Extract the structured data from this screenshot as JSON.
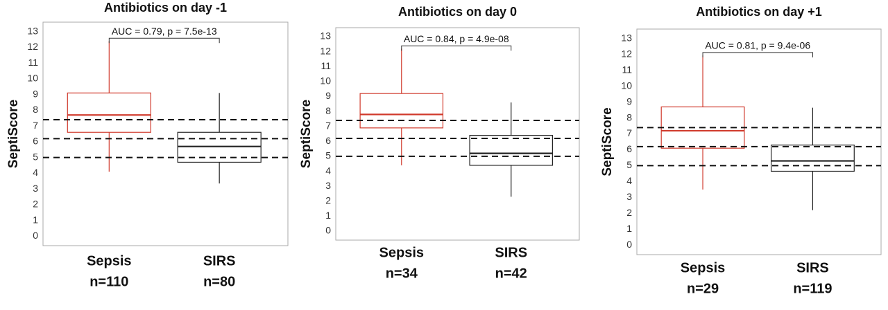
{
  "chart_data": [
    {
      "type": "box",
      "title": "Antibiotics on day -1",
      "y_label": "SeptiScore",
      "annotation": "AUC = 0.79, p = 7.5e-13",
      "categories": [
        "Sepsis",
        "SIRS"
      ],
      "n_labels": [
        "n=110",
        "n=80"
      ],
      "colors": [
        "#d0392b",
        "#222222"
      ],
      "boxes": [
        {
          "whisker_low": 4.1,
          "q1": 6.6,
          "median": 7.7,
          "q3": 9.1,
          "whisker_high": 12.4
        },
        {
          "whisker_low": 3.35,
          "q1": 4.7,
          "median": 5.7,
          "q3": 6.6,
          "whisker_high": 9.1
        }
      ],
      "reference_lines": [
        5.0,
        6.2,
        7.4
      ],
      "ylim": [
        -0.6,
        13.6
      ],
      "yticks": [
        0,
        1,
        2,
        3,
        4,
        5,
        6,
        7,
        8,
        9,
        10,
        11,
        12,
        13
      ]
    },
    {
      "type": "box",
      "title": "Antibiotics on day 0",
      "y_label": "SeptiScore",
      "annotation": "AUC = 0.84, p = 4.9e-08",
      "categories": [
        "Sepsis",
        "SIRS"
      ],
      "n_labels": [
        "n=34",
        "n=42"
      ],
      "colors": [
        "#d0392b",
        "#222222"
      ],
      "boxes": [
        {
          "whisker_low": 4.4,
          "q1": 6.9,
          "median": 7.8,
          "q3": 9.2,
          "whisker_high": 12.2
        },
        {
          "whisker_low": 2.3,
          "q1": 4.4,
          "median": 5.2,
          "q3": 6.4,
          "whisker_high": 8.6
        }
      ],
      "reference_lines": [
        5.0,
        6.2,
        7.4
      ],
      "ylim": [
        -0.6,
        13.6
      ],
      "yticks": [
        0,
        1,
        2,
        3,
        4,
        5,
        6,
        7,
        8,
        9,
        10,
        11,
        12,
        13
      ]
    },
    {
      "type": "box",
      "title": "Antibiotics on day +1",
      "y_label": "SeptiScore",
      "annotation": "AUC = 0.81, p = 9.4e-06",
      "categories": [
        "Sepsis",
        "SIRS"
      ],
      "n_labels": [
        "n=29",
        "n=119"
      ],
      "colors": [
        "#d0392b",
        "#222222"
      ],
      "boxes": [
        {
          "whisker_low": 3.5,
          "q1": 6.1,
          "median": 7.2,
          "q3": 8.7,
          "whisker_high": 11.95
        },
        {
          "whisker_low": 2.2,
          "q1": 4.65,
          "median": 5.3,
          "q3": 6.3,
          "whisker_high": 8.65
        }
      ],
      "reference_lines": [
        5.0,
        6.2,
        7.4
      ],
      "ylim": [
        -0.6,
        13.6
      ],
      "yticks": [
        0,
        1,
        2,
        3,
        4,
        5,
        6,
        7,
        8,
        9,
        10,
        11,
        12,
        13
      ]
    }
  ]
}
